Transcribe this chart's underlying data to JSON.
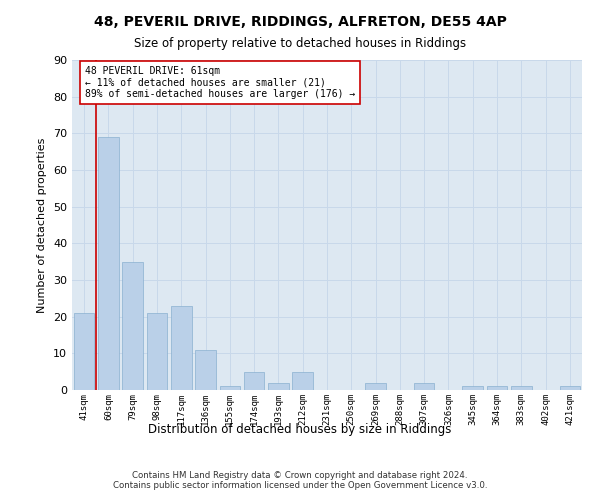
{
  "title1": "48, PEVERIL DRIVE, RIDDINGS, ALFRETON, DE55 4AP",
  "title2": "Size of property relative to detached houses in Riddings",
  "xlabel": "Distribution of detached houses by size in Riddings",
  "ylabel": "Number of detached properties",
  "footer": "Contains HM Land Registry data © Crown copyright and database right 2024.\nContains public sector information licensed under the Open Government Licence v3.0.",
  "annotation_title": "48 PEVERIL DRIVE: 61sqm",
  "annotation_line1": "← 11% of detached houses are smaller (21)",
  "annotation_line2": "89% of semi-detached houses are larger (176) →",
  "bar_labels": [
    "41sqm",
    "60sqm",
    "79sqm",
    "98sqm",
    "117sqm",
    "136sqm",
    "155sqm",
    "174sqm",
    "193sqm",
    "212sqm",
    "231sqm",
    "250sqm",
    "269sqm",
    "288sqm",
    "307sqm",
    "326sqm",
    "345sqm",
    "364sqm",
    "383sqm",
    "402sqm",
    "421sqm"
  ],
  "bar_values": [
    21,
    69,
    35,
    21,
    23,
    11,
    1,
    5,
    2,
    5,
    0,
    0,
    2,
    0,
    2,
    0,
    1,
    1,
    1,
    0,
    1
  ],
  "bar_color": "#bad0e8",
  "bar_edge_color": "#8ab0d0",
  "grid_color": "#c8d8ea",
  "bg_color": "#dde8f2",
  "vline_color": "#cc0000",
  "vline_x_index": 1,
  "ylim": [
    0,
    90
  ],
  "yticks": [
    0,
    10,
    20,
    30,
    40,
    50,
    60,
    70,
    80,
    90
  ]
}
